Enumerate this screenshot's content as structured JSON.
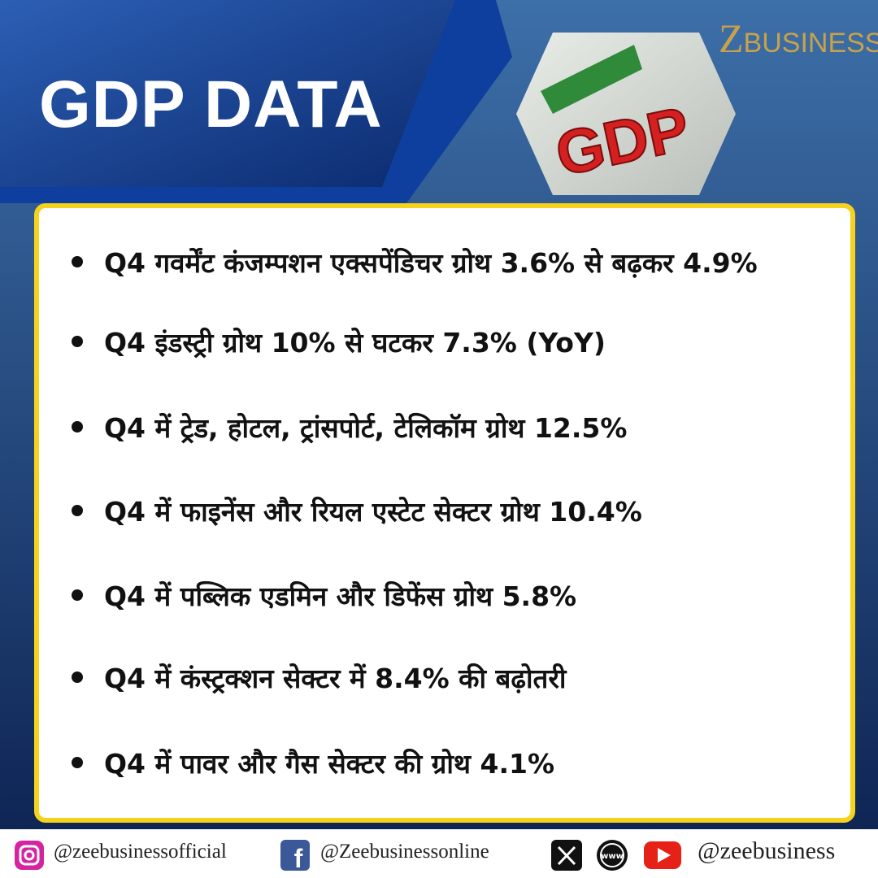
{
  "header": {
    "title": "GDP DATA",
    "logo_letter": "Z",
    "logo_text": "BUSINESS",
    "image_text": "GDP"
  },
  "bullets": [
    "Q4 गवर्मेंट कंजम्पशन एक्सपेंडिचर ग्रोथ 3.6% से बढ़कर 4.9%",
    "Q4 इंडस्ट्री ग्रोथ 10% से घटकर 7.3% (YoY)",
    "Q4 में ट्रेड, होटल, ट्रांसपोर्ट, टेलिकॉम ग्रोथ 12.5%",
    "Q4 में फाइनेंस और रियल एस्टेट सेक्टर ग्रोथ 10.4%",
    "Q4 में पब्लिक एडमिन और डिफेंस ग्रोथ 5.8%",
    "Q4 में कंस्ट्रक्शन सेक्टर में 8.4% की बढ़ोतरी",
    "Q4 में पावर और गैस सेक्टर की ग्रोथ 4.1%"
  ],
  "footer": {
    "instagram": "@zeebusinessofficial",
    "facebook": "@Zeebusinessonline",
    "web_icon": "www",
    "youtube": "@zeebusiness"
  }
}
